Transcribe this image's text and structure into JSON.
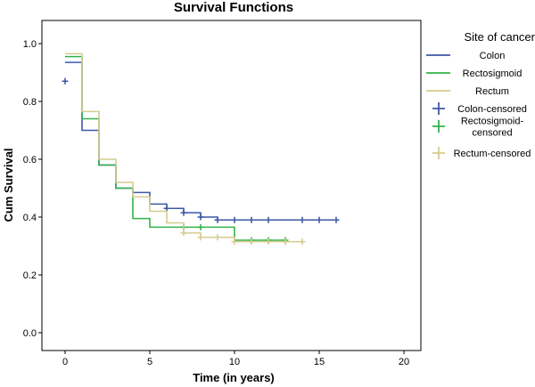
{
  "chart_data": {
    "type": "line",
    "title": "Survival Functions",
    "xlabel": "Time (in years)",
    "ylabel": "Cum Survival",
    "xlim": [
      0,
      20
    ],
    "ylim": [
      0,
      1.0
    ],
    "x_ticks": [
      0,
      5,
      10,
      15,
      20
    ],
    "y_ticks": [
      0.0,
      0.2,
      0.4,
      0.6,
      0.8,
      1.0
    ],
    "x_tick_labels": [
      "0",
      "5",
      "10",
      "15",
      "20"
    ],
    "y_tick_labels": [
      "0.0",
      "0.2",
      "0.4",
      "0.6",
      "0.8",
      "1.0"
    ],
    "grid": false,
    "legend": {
      "title": "Site of cancer",
      "placement": "right",
      "entries": [
        {
          "label": "Colon",
          "kind": "line",
          "color": "#3f57a6"
        },
        {
          "label": "Rectosigmoid",
          "kind": "line",
          "color": "#32b34a"
        },
        {
          "label": "Rectum",
          "kind": "line",
          "color": "#d6cc8f"
        },
        {
          "label": "Colon-censored",
          "kind": "marker",
          "color": "#3f57a6"
        },
        {
          "label": [
            "Rectosigmoid-",
            "censored"
          ],
          "kind": "marker",
          "color": "#32b34a"
        },
        {
          "label": "Rectum-censored",
          "kind": "marker",
          "color": "#d6cc8f"
        }
      ]
    },
    "series": [
      {
        "name": "Colon",
        "color": "#3f57a6",
        "steps": [
          [
            0,
            0.935
          ],
          [
            1,
            0.7
          ],
          [
            2,
            0.58
          ],
          [
            3,
            0.5
          ],
          [
            4,
            0.485
          ],
          [
            5,
            0.445
          ],
          [
            6,
            0.43
          ],
          [
            7,
            0.415
          ],
          [
            8,
            0.4
          ],
          [
            9,
            0.39
          ]
        ],
        "end_x": 16,
        "censored": [
          [
            0,
            0.87
          ],
          [
            6,
            0.43
          ],
          [
            7,
            0.415
          ],
          [
            8,
            0.4
          ],
          [
            9,
            0.39
          ],
          [
            10,
            0.39
          ],
          [
            11,
            0.39
          ],
          [
            12,
            0.39
          ],
          [
            14,
            0.39
          ],
          [
            15,
            0.39
          ],
          [
            16,
            0.39
          ]
        ]
      },
      {
        "name": "Rectosigmoid",
        "color": "#32b34a",
        "steps": [
          [
            0,
            0.955
          ],
          [
            1,
            0.74
          ],
          [
            2,
            0.58
          ],
          [
            3,
            0.5
          ],
          [
            4,
            0.395
          ],
          [
            5,
            0.365
          ],
          [
            10,
            0.32
          ]
        ],
        "end_x": 13,
        "censored": [
          [
            7,
            0.365
          ],
          [
            8,
            0.365
          ],
          [
            11,
            0.32
          ],
          [
            12,
            0.32
          ],
          [
            13,
            0.32
          ]
        ]
      },
      {
        "name": "Rectum",
        "color": "#d6cc8f",
        "steps": [
          [
            0,
            0.965
          ],
          [
            1,
            0.765
          ],
          [
            2,
            0.6
          ],
          [
            3,
            0.52
          ],
          [
            4,
            0.47
          ],
          [
            5,
            0.42
          ],
          [
            6,
            0.38
          ],
          [
            7,
            0.345
          ],
          [
            8,
            0.33
          ],
          [
            10,
            0.315
          ]
        ],
        "end_x": 14,
        "censored": [
          [
            7,
            0.345
          ],
          [
            8,
            0.33
          ],
          [
            9,
            0.33
          ],
          [
            10,
            0.315
          ],
          [
            11,
            0.315
          ],
          [
            12,
            0.315
          ],
          [
            13,
            0.315
          ],
          [
            14,
            0.315
          ]
        ]
      }
    ]
  }
}
